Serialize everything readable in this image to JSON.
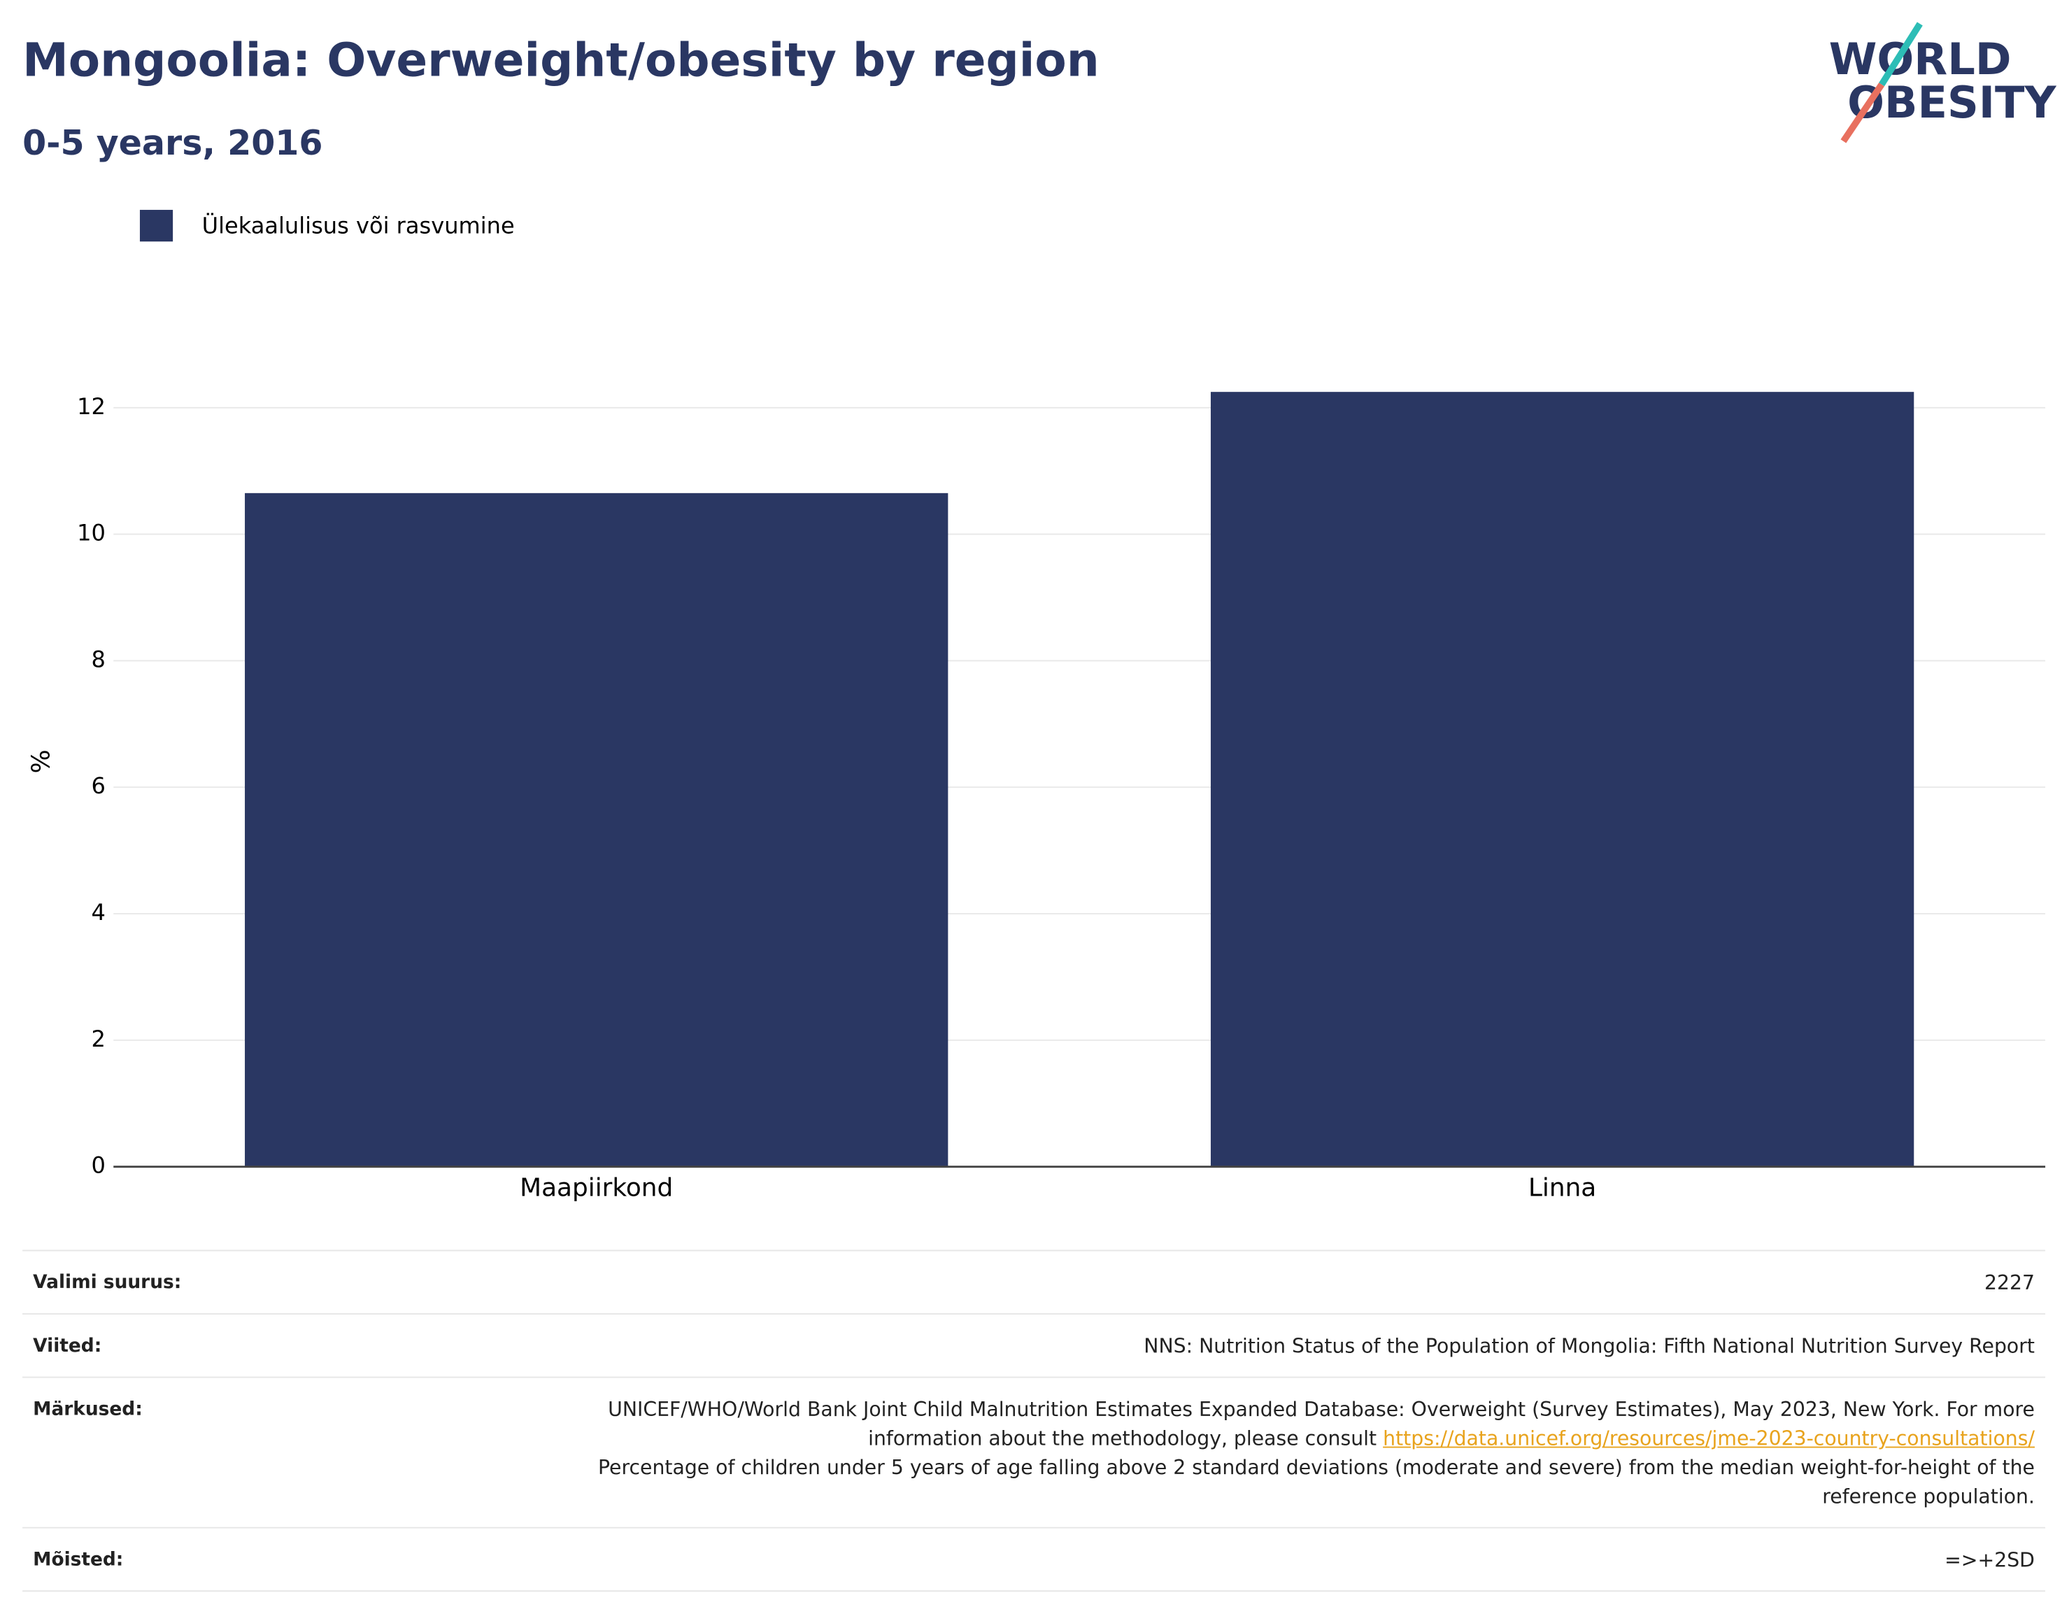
{
  "chart_data": {
    "type": "bar",
    "title": "Mongoolia: Overweight/obesity by region",
    "subtitle": "0-5 years, 2016",
    "y_label": "%",
    "categories": [
      "Maapiirkond",
      "Linna"
    ],
    "series": [
      {
        "name": "Ülekaalulisus või rasvumine",
        "color": "#2a3763",
        "values": [
          10.65,
          12.25
        ]
      }
    ],
    "ylim": [
      0,
      13
    ],
    "yticks": [
      0,
      2,
      4,
      6,
      8,
      10,
      12
    ],
    "grid": true,
    "legend": "top-left"
  },
  "logo": {
    "line1": "WORLD",
    "line2": "OBESITY"
  },
  "footer": {
    "rows": [
      {
        "label": "Valimi suurus:",
        "value": "2227"
      },
      {
        "label": "Viited:",
        "value": "NNS: Nutrition Status of the Population of Mongolia: Fifth National Nutrition Survey Report"
      },
      {
        "label": "Märkused:",
        "value": "UNICEF/WHO/World Bank Joint Child Malnutrition Estimates Expanded Database: Overweight (Survey Estimates), May 2023, New York. For more information about the methodology, please consult",
        "link": "https://data.unicef.org/resources/jme-2023-country-consultations/",
        "value2": "Percentage of children under 5 years of age falling above 2 standard deviations (moderate and severe) from the median weight-for-height of the reference population."
      },
      {
        "label": "Mõisted:",
        "value": "=>+2SD"
      }
    ]
  }
}
